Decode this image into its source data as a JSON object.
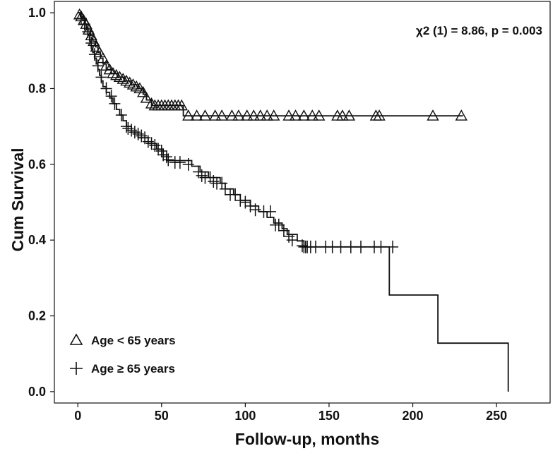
{
  "chart_data": {
    "type": "line",
    "subtype": "kaplan-meier",
    "xlabel": "Follow-up, months",
    "ylabel": "Cum Survival",
    "xlim": [
      -14,
      282
    ],
    "ylim": [
      -0.03,
      1.03
    ],
    "xticks": [
      "0",
      "50",
      "100",
      "150",
      "200",
      "250"
    ],
    "yticks": [
      "0.0",
      "0.2",
      "0.4",
      "0.6",
      "0.8",
      "1.0"
    ],
    "annotation": "χ2 (1) = 8.86, p = 0.003",
    "series": [
      {
        "name": "Age < 65 years",
        "marker": "triangle",
        "steps": [
          [
            0,
            1.0
          ],
          [
            1.5,
            0.99
          ],
          [
            3,
            0.98
          ],
          [
            4.5,
            0.97
          ],
          [
            6,
            0.955
          ],
          [
            7.5,
            0.94
          ],
          [
            9,
            0.925
          ],
          [
            10.5,
            0.91
          ],
          [
            12,
            0.895
          ],
          [
            13.5,
            0.88
          ],
          [
            15,
            0.865
          ],
          [
            17,
            0.85
          ],
          [
            20,
            0.84
          ],
          [
            24,
            0.83
          ],
          [
            28,
            0.82
          ],
          [
            32,
            0.81
          ],
          [
            36,
            0.8
          ],
          [
            39,
            0.785
          ],
          [
            41,
            0.77
          ],
          [
            44,
            0.755
          ],
          [
            63,
            0.728
          ],
          [
            230,
            0.728
          ]
        ],
        "censored": [
          [
            1,
            0.995
          ],
          [
            2,
            0.99
          ],
          [
            3.5,
            0.98
          ],
          [
            5,
            0.97
          ],
          [
            6.5,
            0.955
          ],
          [
            8,
            0.94
          ],
          [
            9.5,
            0.925
          ],
          [
            11,
            0.91
          ],
          [
            13,
            0.895
          ],
          [
            15,
            0.88
          ],
          [
            17,
            0.86
          ],
          [
            19,
            0.85
          ],
          [
            21,
            0.84
          ],
          [
            23,
            0.835
          ],
          [
            25,
            0.83
          ],
          [
            27,
            0.825
          ],
          [
            29,
            0.82
          ],
          [
            31,
            0.815
          ],
          [
            33,
            0.81
          ],
          [
            35,
            0.805
          ],
          [
            37,
            0.8
          ],
          [
            39,
            0.79
          ],
          [
            41,
            0.775
          ],
          [
            44,
            0.76
          ],
          [
            46,
            0.755
          ],
          [
            48,
            0.755
          ],
          [
            50,
            0.755
          ],
          [
            52,
            0.755
          ],
          [
            54,
            0.755
          ],
          [
            56,
            0.755
          ],
          [
            58,
            0.755
          ],
          [
            60,
            0.755
          ],
          [
            62,
            0.755
          ],
          [
            66,
            0.728
          ],
          [
            71,
            0.728
          ],
          [
            76,
            0.728
          ],
          [
            82,
            0.728
          ],
          [
            86,
            0.728
          ],
          [
            92,
            0.728
          ],
          [
            96,
            0.728
          ],
          [
            101,
            0.728
          ],
          [
            105,
            0.728
          ],
          [
            109,
            0.728
          ],
          [
            113,
            0.728
          ],
          [
            117,
            0.728
          ],
          [
            126,
            0.728
          ],
          [
            130,
            0.728
          ],
          [
            135,
            0.728
          ],
          [
            140,
            0.728
          ],
          [
            144,
            0.728
          ],
          [
            155,
            0.728
          ],
          [
            158,
            0.728
          ],
          [
            162,
            0.728
          ],
          [
            178,
            0.728
          ],
          [
            180,
            0.728
          ],
          [
            212,
            0.728
          ],
          [
            229,
            0.728
          ]
        ]
      },
      {
        "name": "Age ≥ 65 years",
        "marker": "plus",
        "steps": [
          [
            0,
            1.0
          ],
          [
            2,
            0.985
          ],
          [
            4,
            0.97
          ],
          [
            5,
            0.955
          ],
          [
            6,
            0.94
          ],
          [
            7,
            0.925
          ],
          [
            8,
            0.91
          ],
          [
            9,
            0.895
          ],
          [
            10,
            0.88
          ],
          [
            11,
            0.865
          ],
          [
            12,
            0.85
          ],
          [
            13,
            0.835
          ],
          [
            14,
            0.82
          ],
          [
            15,
            0.805
          ],
          [
            17,
            0.79
          ],
          [
            19,
            0.775
          ],
          [
            21,
            0.76
          ],
          [
            23,
            0.745
          ],
          [
            25,
            0.73
          ],
          [
            27,
            0.715
          ],
          [
            29,
            0.7
          ],
          [
            32,
            0.685
          ],
          [
            36,
            0.67
          ],
          [
            42,
            0.655
          ],
          [
            47,
            0.64
          ],
          [
            51,
            0.625
          ],
          [
            53,
            0.61
          ],
          [
            68,
            0.595
          ],
          [
            73,
            0.58
          ],
          [
            78,
            0.565
          ],
          [
            85,
            0.55
          ],
          [
            88,
            0.535
          ],
          [
            93,
            0.52
          ],
          [
            97,
            0.505
          ],
          [
            103,
            0.49
          ],
          [
            108,
            0.475
          ],
          [
            113,
            0.46
          ],
          [
            117,
            0.445
          ],
          [
            122,
            0.43
          ],
          [
            125,
            0.415
          ],
          [
            131,
            0.398
          ],
          [
            135,
            0.382
          ],
          [
            186,
            0.255
          ],
          [
            215,
            0.128
          ],
          [
            257,
            0.0
          ]
        ],
        "censored": [
          [
            2,
            0.985
          ],
          [
            4,
            0.97
          ],
          [
            6,
            0.95
          ],
          [
            8,
            0.92
          ],
          [
            10,
            0.89
          ],
          [
            12,
            0.86
          ],
          [
            14,
            0.83
          ],
          [
            17,
            0.8
          ],
          [
            20,
            0.78
          ],
          [
            22,
            0.76
          ],
          [
            26,
            0.73
          ],
          [
            29,
            0.7
          ],
          [
            30,
            0.695
          ],
          [
            32,
            0.69
          ],
          [
            34,
            0.685
          ],
          [
            36,
            0.68
          ],
          [
            38,
            0.675
          ],
          [
            40,
            0.67
          ],
          [
            42,
            0.66
          ],
          [
            44,
            0.655
          ],
          [
            46,
            0.65
          ],
          [
            48,
            0.64
          ],
          [
            50,
            0.635
          ],
          [
            51,
            0.625
          ],
          [
            53,
            0.62
          ],
          [
            54,
            0.612
          ],
          [
            58,
            0.605
          ],
          [
            61,
            0.605
          ],
          [
            66,
            0.6
          ],
          [
            72,
            0.58
          ],
          [
            74,
            0.57
          ],
          [
            76,
            0.565
          ],
          [
            79,
            0.565
          ],
          [
            81,
            0.555
          ],
          [
            83,
            0.55
          ],
          [
            86,
            0.55
          ],
          [
            88,
            0.535
          ],
          [
            91,
            0.52
          ],
          [
            94,
            0.52
          ],
          [
            97,
            0.505
          ],
          [
            100,
            0.5
          ],
          [
            103,
            0.49
          ],
          [
            106,
            0.48
          ],
          [
            111,
            0.475
          ],
          [
            115,
            0.475
          ],
          [
            118,
            0.44
          ],
          [
            120,
            0.44
          ],
          [
            123,
            0.425
          ],
          [
            126,
            0.41
          ],
          [
            128,
            0.4
          ],
          [
            134,
            0.385
          ],
          [
            135,
            0.382
          ],
          [
            136,
            0.382
          ],
          [
            137,
            0.382
          ],
          [
            139,
            0.382
          ],
          [
            142,
            0.382
          ],
          [
            148,
            0.382
          ],
          [
            152,
            0.382
          ],
          [
            157,
            0.382
          ],
          [
            163,
            0.382
          ],
          [
            169,
            0.382
          ],
          [
            177,
            0.382
          ],
          [
            181,
            0.382
          ],
          [
            188,
            0.382
          ]
        ]
      }
    ]
  }
}
